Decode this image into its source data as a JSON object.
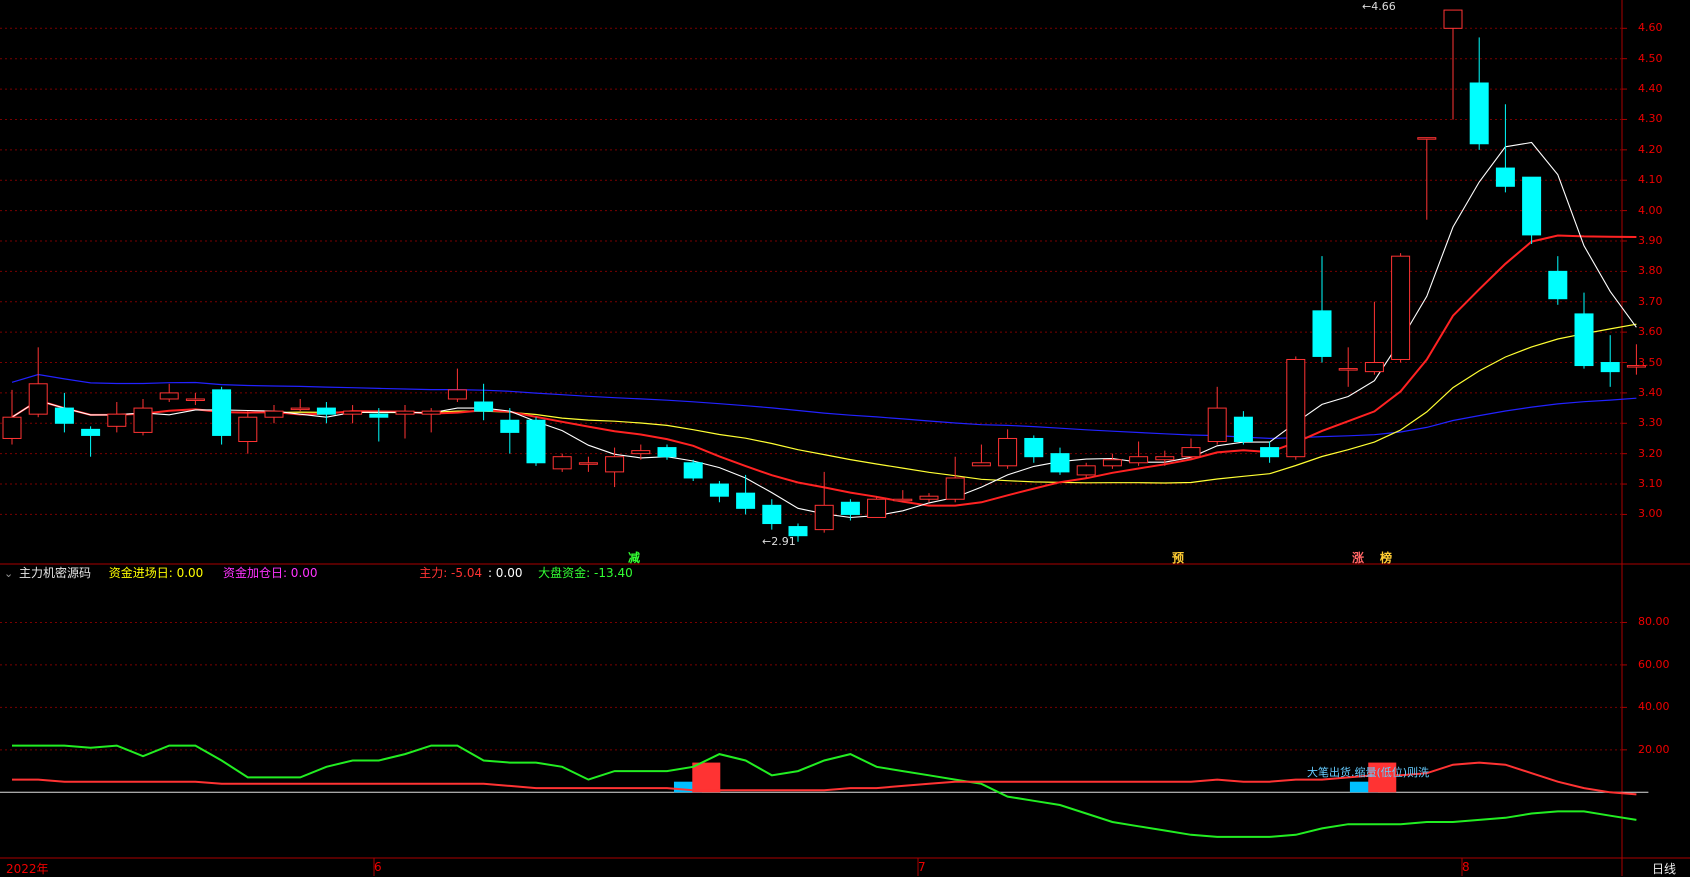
{
  "main_panel": {
    "price_axis": [
      "4.60",
      "4.50",
      "4.40",
      "4.30",
      "4.20",
      "4.10",
      "4.00",
      "3.90",
      "3.80",
      "3.70",
      "3.60",
      "3.50",
      "3.40",
      "3.30",
      "3.20",
      "3.10",
      "3.00"
    ],
    "high_label": "4.66",
    "low_label": "2.91",
    "signals": [
      {
        "text": "减",
        "color": "#33ff33"
      },
      {
        "text": "预",
        "color": "#ffcc33"
      },
      {
        "text": "涨",
        "color": "#ff6666"
      },
      {
        "text": "榜",
        "color": "#ffcc33"
      }
    ]
  },
  "indicator": {
    "title": "主力机密源码",
    "items": [
      {
        "label": "资金进场日: 0.00",
        "color": "#ffff00"
      },
      {
        "label": "资金加仓日: 0.00",
        "color": "#ff33ff"
      },
      {
        "label": "主力: -5.04",
        "color": "#ff3333"
      },
      {
        "label": ": 0.00",
        "color": "#ffffff"
      },
      {
        "label": "大盘资金: -13.40",
        "color": "#33ff33"
      }
    ],
    "axis": [
      "80.00",
      "60.00",
      "40.00",
      "20.00"
    ],
    "annotation": "大笔出货.缩量(低位)则洗"
  },
  "time_axis": [
    "2022年",
    "6",
    "7",
    "8"
  ],
  "period": "日线",
  "colors": {
    "up": "#ff3333",
    "down": "#00ffff",
    "ma5": "#ffffff",
    "ma10": "#ff2222",
    "ma20": "#ffff33",
    "ma60": "#2222ff",
    "grid": "#7a0000",
    "green_line": "#22ee22"
  },
  "chart_data": {
    "type": "candlestick",
    "candles": [
      [
        3.25,
        3.32,
        3.41,
        3.23
      ],
      [
        3.33,
        3.43,
        3.55,
        3.32
      ],
      [
        3.35,
        3.3,
        3.4,
        3.27
      ],
      [
        3.28,
        3.26,
        3.29,
        3.19
      ],
      [
        3.29,
        3.33,
        3.37,
        3.27
      ],
      [
        3.27,
        3.35,
        3.38,
        3.26
      ],
      [
        3.38,
        3.4,
        3.43,
        3.37
      ],
      [
        3.38,
        3.38,
        3.4,
        3.36
      ],
      [
        3.41,
        3.26,
        3.42,
        3.23
      ],
      [
        3.24,
        3.32,
        3.34,
        3.2
      ],
      [
        3.32,
        3.34,
        3.36,
        3.3
      ],
      [
        3.35,
        3.35,
        3.38,
        3.34
      ],
      [
        3.35,
        3.33,
        3.37,
        3.3
      ],
      [
        3.33,
        3.34,
        3.36,
        3.3
      ],
      [
        3.33,
        3.32,
        3.35,
        3.24
      ],
      [
        3.33,
        3.34,
        3.36,
        3.25
      ],
      [
        3.33,
        3.34,
        3.35,
        3.27
      ],
      [
        3.38,
        3.41,
        3.48,
        3.37
      ],
      [
        3.37,
        3.34,
        3.43,
        3.31
      ],
      [
        3.31,
        3.27,
        3.35,
        3.2
      ],
      [
        3.31,
        3.17,
        3.32,
        3.16
      ],
      [
        3.15,
        3.19,
        3.2,
        3.14
      ],
      [
        3.17,
        3.17,
        3.19,
        3.14
      ],
      [
        3.14,
        3.19,
        3.22,
        3.09
      ],
      [
        3.2,
        3.21,
        3.23,
        3.18
      ],
      [
        3.22,
        3.19,
        3.23,
        3.18
      ],
      [
        3.17,
        3.12,
        3.18,
        3.11
      ],
      [
        3.1,
        3.06,
        3.11,
        3.04
      ],
      [
        3.07,
        3.02,
        3.13,
        3.0
      ],
      [
        3.03,
        2.97,
        3.05,
        2.95
      ],
      [
        2.96,
        2.93,
        2.97,
        2.91
      ],
      [
        2.95,
        3.03,
        3.14,
        2.94
      ],
      [
        3.04,
        3.0,
        3.05,
        2.98
      ],
      [
        2.99,
        3.05,
        3.06,
        2.99
      ],
      [
        3.05,
        3.05,
        3.08,
        3.04
      ],
      [
        3.05,
        3.06,
        3.07,
        3.04
      ],
      [
        3.05,
        3.12,
        3.19,
        3.04
      ],
      [
        3.16,
        3.17,
        3.23,
        3.16
      ],
      [
        3.16,
        3.25,
        3.28,
        3.15
      ],
      [
        3.25,
        3.19,
        3.26,
        3.17
      ],
      [
        3.2,
        3.14,
        3.22,
        3.13
      ],
      [
        3.13,
        3.16,
        3.17,
        3.12
      ],
      [
        3.16,
        3.18,
        3.2,
        3.15
      ],
      [
        3.17,
        3.19,
        3.24,
        3.16
      ],
      [
        3.18,
        3.19,
        3.21,
        3.16
      ],
      [
        3.19,
        3.22,
        3.25,
        3.18
      ],
      [
        3.24,
        3.35,
        3.42,
        3.23
      ],
      [
        3.32,
        3.24,
        3.34,
        3.23
      ],
      [
        3.22,
        3.19,
        3.24,
        3.17
      ],
      [
        3.19,
        3.51,
        3.52,
        3.18
      ],
      [
        3.67,
        3.52,
        3.85,
        3.5
      ],
      [
        3.48,
        3.48,
        3.55,
        3.42
      ],
      [
        3.47,
        3.5,
        3.7,
        3.46
      ],
      [
        3.51,
        3.85,
        3.86,
        3.5
      ],
      [
        4.24,
        4.24,
        4.24,
        3.97
      ],
      [
        4.6,
        4.66,
        4.66,
        4.3
      ],
      [
        4.42,
        4.22,
        4.57,
        4.2
      ],
      [
        4.14,
        4.08,
        4.35,
        4.06
      ],
      [
        4.11,
        3.92,
        4.11,
        3.89
      ],
      [
        3.8,
        3.71,
        3.85,
        3.69
      ],
      [
        3.66,
        3.49,
        3.73,
        3.48
      ],
      [
        3.5,
        3.47,
        3.59,
        3.42
      ],
      [
        3.49,
        3.49,
        3.56,
        3.46
      ]
    ],
    "sub_red": [
      6,
      6,
      5,
      5,
      5,
      5,
      5,
      5,
      4,
      4,
      4,
      4,
      4,
      4,
      4,
      4,
      4,
      4,
      4,
      3,
      2,
      2,
      2,
      2,
      2,
      2,
      1,
      1,
      1,
      1,
      1,
      1,
      2,
      2,
      3,
      4,
      5,
      5,
      5,
      5,
      5,
      5,
      5,
      5,
      5,
      5,
      6,
      5,
      5,
      6,
      6,
      7,
      8,
      8,
      9,
      13,
      14,
      13,
      9,
      5,
      2,
      0,
      -1
    ],
    "sub_green": [
      22,
      22,
      22,
      21,
      22,
      17,
      22,
      22,
      15,
      7,
      7,
      7,
      12,
      15,
      15,
      18,
      22,
      22,
      15,
      14,
      14,
      12,
      6,
      10,
      10,
      10,
      12,
      18,
      15,
      8,
      10,
      15,
      18,
      12,
      10,
      8,
      6,
      4,
      -2,
      -4,
      -6,
      -10,
      -14,
      -16,
      -18,
      -20,
      -21,
      -21,
      -21,
      -20,
      -17,
      -15,
      -15,
      -15,
      -14,
      -14,
      -13,
      -12,
      -10,
      -9,
      -9,
      -11,
      -13
    ],
    "sub_bars": [
      {
        "pos": 25.8,
        "value": 5,
        "color": "#00bfff"
      },
      {
        "pos": 26.5,
        "value": 14,
        "color": "#ff3333"
      },
      {
        "pos": 51.6,
        "value": 5,
        "color": "#00bfff"
      },
      {
        "pos": 52.3,
        "value": 14,
        "color": "#ff3333"
      }
    ]
  }
}
